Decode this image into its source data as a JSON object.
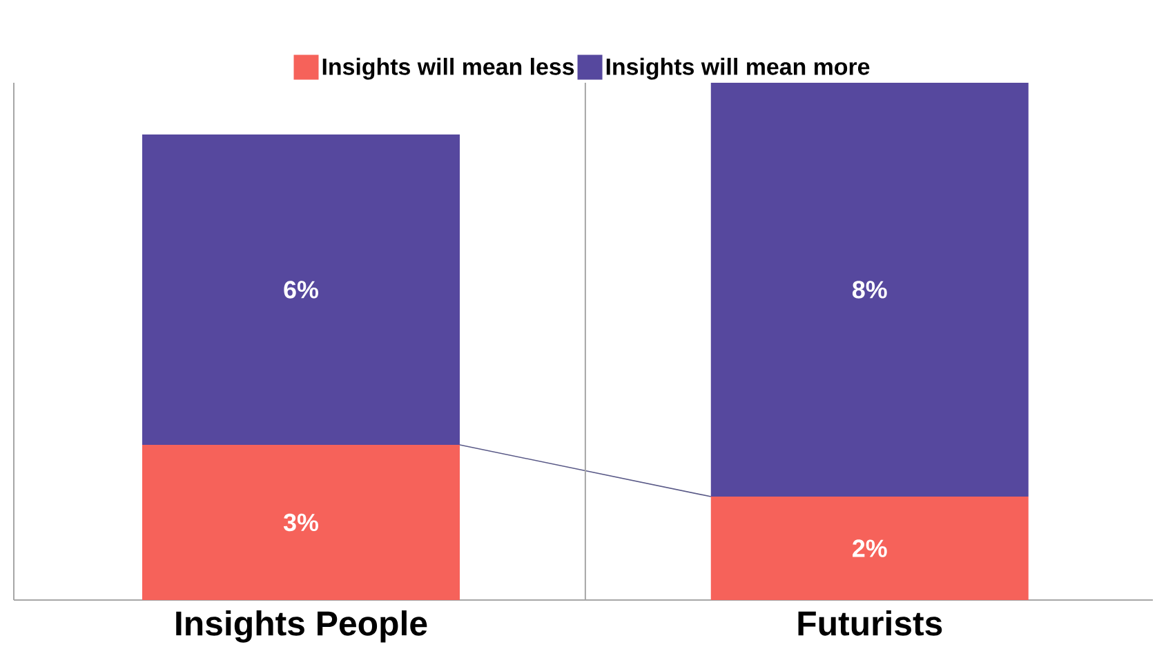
{
  "chart_data": {
    "type": "bar",
    "stacked": true,
    "legend": "top",
    "categories": [
      "Insights People",
      "Futurists"
    ],
    "series": [
      {
        "name": "Insights will mean less",
        "color": "#f6625a",
        "values": [
          3,
          2
        ],
        "value_labels": [
          "3%",
          "2%"
        ]
      },
      {
        "name": "Insights will mean more",
        "color": "#56489e",
        "values": [
          6,
          8
        ],
        "value_labels": [
          "6%",
          "8%"
        ]
      }
    ]
  }
}
